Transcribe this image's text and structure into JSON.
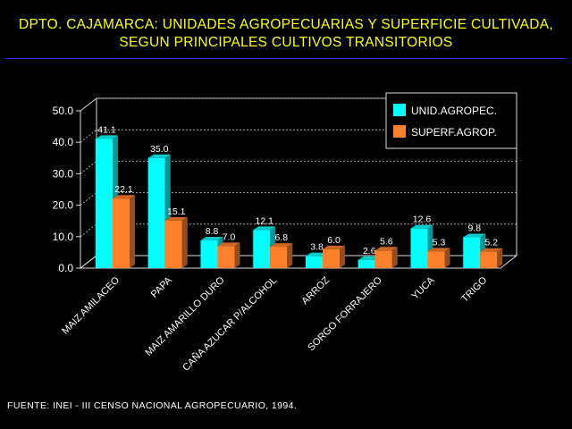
{
  "title_line1": "DPTO. CAJAMARCA: UNIDADES AGROPECUARIAS Y SUPERFICIE CULTIVADA,",
  "title_line2": "SEGUN PRINCIPALES CULTIVOS TRANSITORIOS",
  "source": "FUENTE: INEI - III CENSO NACIONAL AGROPECUARIO, 1994.",
  "colors": {
    "background": "#000000",
    "title": "#ffff00",
    "unid": "#00ffff",
    "superf": "#ff7f2a"
  },
  "chart_data": {
    "type": "bar",
    "categories": [
      "MAIZ AMILACEO",
      "PAPA",
      "MAIZ AMARILLO DURO",
      "CAÑA AZUCAR P/ALCOHOL",
      "ARROZ",
      "SORGO FORRAJERO",
      "YUCA",
      "TRIGO"
    ],
    "series": [
      {
        "name": "UNID.AGROPEC.",
        "values": [
          41.1,
          35.0,
          8.8,
          12.1,
          3.8,
          2.6,
          12.6,
          9.8
        ],
        "labels": [
          "41.1",
          "35.0",
          "8.8",
          "12.1",
          "3.8",
          "2.6",
          "12.6",
          "9.8"
        ]
      },
      {
        "name": "SUPERF.AGROP.",
        "values": [
          22.1,
          15.1,
          7.0,
          6.8,
          6.0,
          5.6,
          5.3,
          5.2
        ],
        "labels": [
          "22.1",
          "15.1",
          "7.0",
          "6.8",
          "6.0",
          "5.6",
          "5.3",
          "5.2"
        ]
      }
    ],
    "yticks": [
      "0.0",
      "10.0",
      "20.0",
      "30.0",
      "40.0",
      "50.0"
    ],
    "ylim": [
      0,
      50
    ],
    "grid": true,
    "legend_position": "top-right"
  }
}
